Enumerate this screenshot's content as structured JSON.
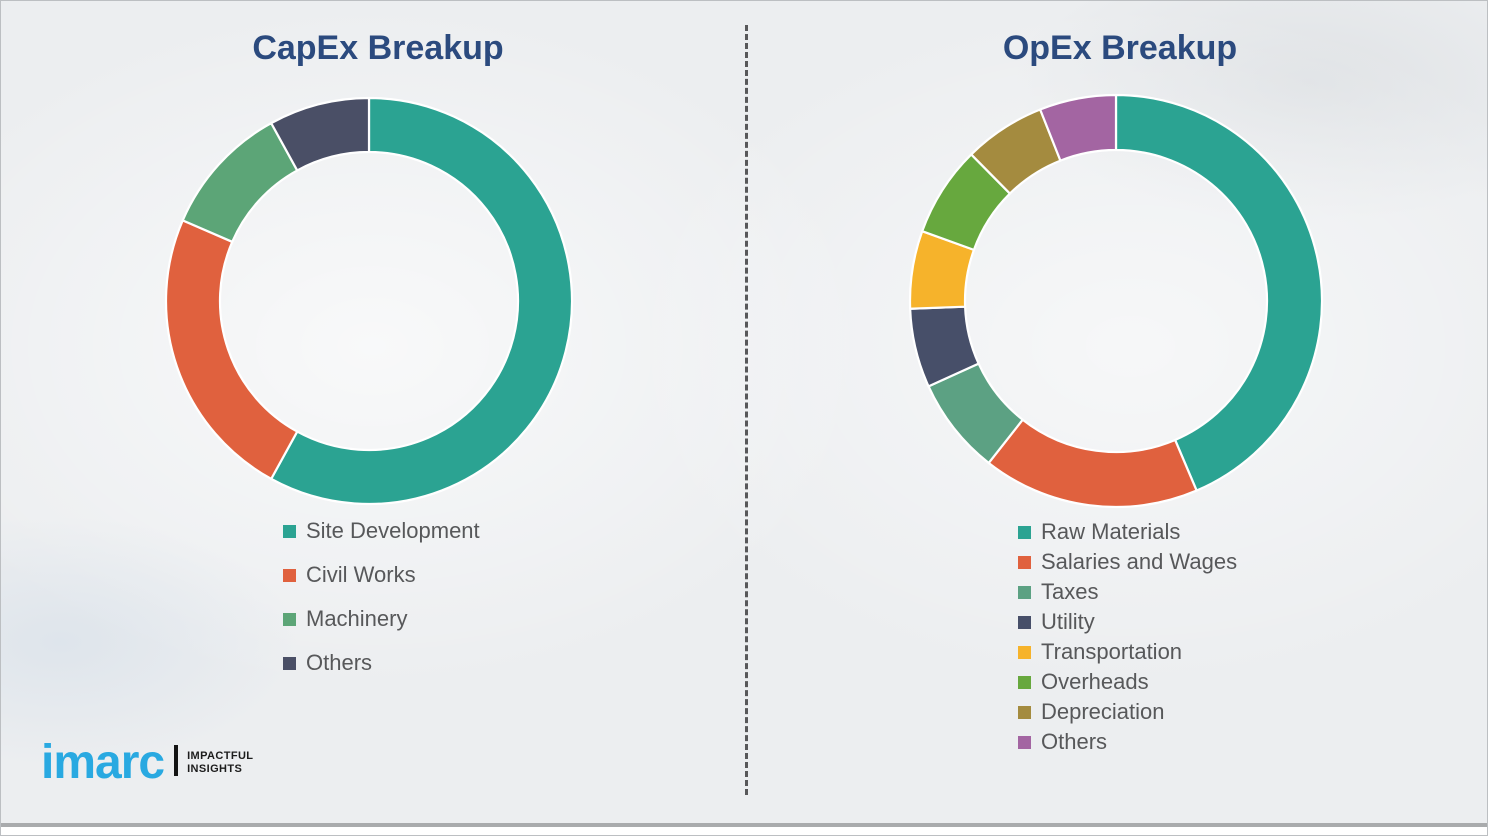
{
  "logo": {
    "brand": "imarc",
    "tagline_line1": "IMPACTFUL",
    "tagline_line2": "INSIGHTS"
  },
  "ui_colors": {
    "title_blue": "#2b4a7e",
    "legend_text": "#57585a",
    "logo_blue": "#29a9e1",
    "slide_background": "#eceef0",
    "divider_gray": "#58585a"
  },
  "chart_data": [
    {
      "type": "pie",
      "subtype": "donut",
      "title": "CapEx Breakup",
      "unit": "percent",
      "legend_position": "below-left",
      "donut_hole_ratio": 0.735,
      "start_angle_deg": 0,
      "direction": "clockwise",
      "categories": [
        "Site Development",
        "Civil Works",
        "Machinery",
        "Others"
      ],
      "values": [
        58,
        23.5,
        10.5,
        8
      ],
      "colors": [
        "#2ba392",
        "#e0613e",
        "#5ca577",
        "#4a4f66"
      ]
    },
    {
      "type": "pie",
      "subtype": "donut",
      "title": "OpEx Breakup",
      "unit": "percent",
      "legend_position": "below-left",
      "donut_hole_ratio": 0.73,
      "start_angle_deg": 0,
      "direction": "clockwise",
      "categories": [
        "Raw Materials",
        "Salaries and Wages",
        "Taxes",
        "Utility",
        "Transportation",
        "Overheads",
        "Depreciation",
        "Others"
      ],
      "values": [
        43.6,
        17,
        7.6,
        6.2,
        6.1,
        7.1,
        6.4,
        6
      ],
      "colors": [
        "#2ba392",
        "#e0613e",
        "#5ca183",
        "#474f69",
        "#f6b32b",
        "#67a83e",
        "#a48b3f",
        "#a365a2"
      ]
    }
  ]
}
